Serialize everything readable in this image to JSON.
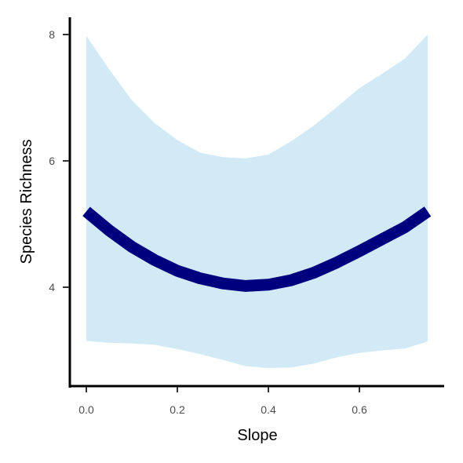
{
  "chart_data": {
    "type": "line",
    "title": "",
    "xlabel": "Slope",
    "ylabel": "Species Richness",
    "xlim": [
      -0.03,
      0.79
    ],
    "ylim": [
      2.4,
      8.3
    ],
    "xticks": [
      0.0,
      0.2,
      0.4,
      0.6
    ],
    "xtick_labels": [
      "0.0",
      "0.2",
      "0.4",
      "0.6"
    ],
    "yticks": [
      4,
      6,
      8
    ],
    "ytick_labels": [
      "4",
      "6",
      "8"
    ],
    "grid": false,
    "legend": "none",
    "series": [
      {
        "x": [
          0.0,
          0.05,
          0.1,
          0.15,
          0.2,
          0.25,
          0.3,
          0.35,
          0.4,
          0.45,
          0.5,
          0.55,
          0.6,
          0.65,
          0.7,
          0.75
        ],
        "y": [
          5.2,
          4.9,
          4.64,
          4.43,
          4.26,
          4.14,
          4.06,
          4.02,
          4.04,
          4.11,
          4.23,
          4.39,
          4.57,
          4.76,
          4.95,
          5.2
        ],
        "ci_lower": [
          3.15,
          3.12,
          3.11,
          3.09,
          3.02,
          2.94,
          2.85,
          2.75,
          2.72,
          2.73,
          2.79,
          2.89,
          2.96,
          3.0,
          3.03,
          3.14
        ],
        "ci_upper": [
          7.98,
          7.45,
          6.96,
          6.6,
          6.33,
          6.13,
          6.06,
          6.04,
          6.1,
          6.31,
          6.56,
          6.85,
          7.15,
          7.38,
          7.62,
          8.0
        ]
      }
    ],
    "colors": {
      "line": "#00007f",
      "ribbon": "#d1eaf6",
      "axis": "#000000",
      "tick_text": "#4d4d4d"
    }
  }
}
